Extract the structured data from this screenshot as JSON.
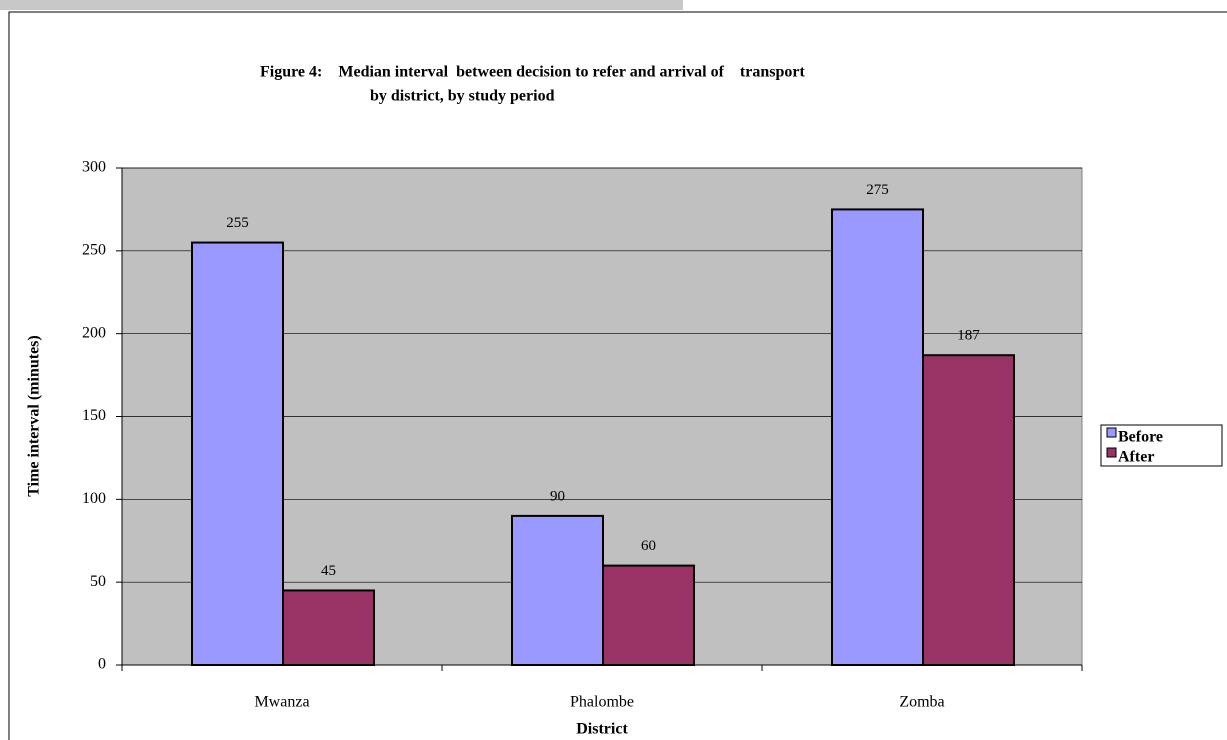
{
  "chart_data": {
    "type": "bar",
    "title": [
      "Figure 4:    Median interval  between decision to refer and arrival of    transport",
      "by district, by study period"
    ],
    "x_label": "District",
    "y_label": "Time interval (minutes)",
    "categories": [
      "Mwanza",
      "Phalombe",
      "Zomba"
    ],
    "series": [
      {
        "name": "Before",
        "color": "#9999ff",
        "values": [
          255,
          90,
          275
        ]
      },
      {
        "name": "After",
        "color": "#993366",
        "values": [
          45,
          60,
          187
        ]
      }
    ],
    "ylim": [
      0,
      300
    ],
    "yticks": [
      0,
      50,
      100,
      150,
      200,
      250,
      300
    ],
    "grid": true,
    "legend": "right"
  }
}
